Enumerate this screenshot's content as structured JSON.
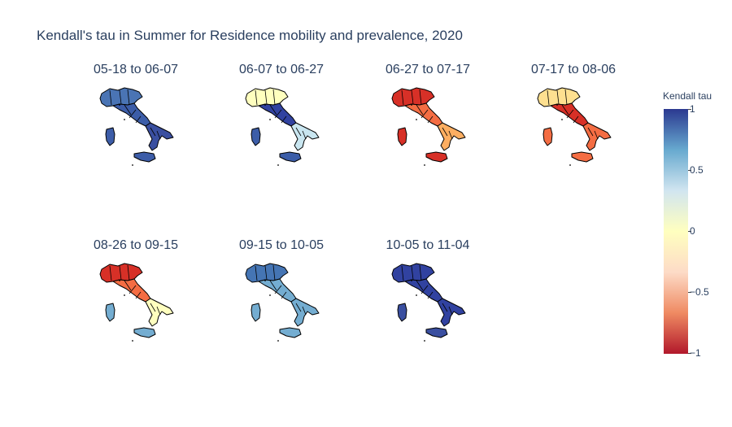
{
  "title": "Kendall's tau in Summer for Residence mobility and prevalence, 2020",
  "colorbar": {
    "title": "Kendall tau",
    "ticks": [
      "1",
      "0.5",
      "0",
      "−0.5",
      "−1"
    ],
    "range": [
      -1,
      1
    ],
    "colorscale": [
      "#b2182b",
      "#ef8a62",
      "#fddbc7",
      "#ffffbf",
      "#d1e5f0",
      "#67a9cf",
      "#2b3990"
    ]
  },
  "panels": [
    {
      "label": "05-18 to 06-07",
      "north": "#4a74b4",
      "center": "#3c5da8",
      "south": "#3a4fa0",
      "islands": "#3d5da8"
    },
    {
      "label": "06-07 to 06-27",
      "north": "#ffffbf",
      "center": "#3142a0",
      "south": "#c9e6f0",
      "islands": "#3c5da8"
    },
    {
      "label": "06-27 to 07-17",
      "north": "#d73027",
      "center": "#f46d43",
      "south": "#fdae61",
      "islands": "#d73027"
    },
    {
      "label": "07-17 to 08-06",
      "north": "#fee090",
      "center": "#d73027",
      "south": "#f46d43",
      "islands": "#f46d43"
    },
    {
      "label": "08-26 to 09-15",
      "north": "#d73027",
      "center": "#f46d43",
      "south": "#ffffbf",
      "islands": "#74add1"
    },
    {
      "label": "09-15 to 10-05",
      "north": "#4575b4",
      "center": "#74add1",
      "south": "#74add1",
      "islands": "#74add1"
    },
    {
      "label": "10-05 to 11-04",
      "north": "#3142a0",
      "center": "#3142a0",
      "south": "#3142a0",
      "islands": "#3a4fa0"
    }
  ]
}
